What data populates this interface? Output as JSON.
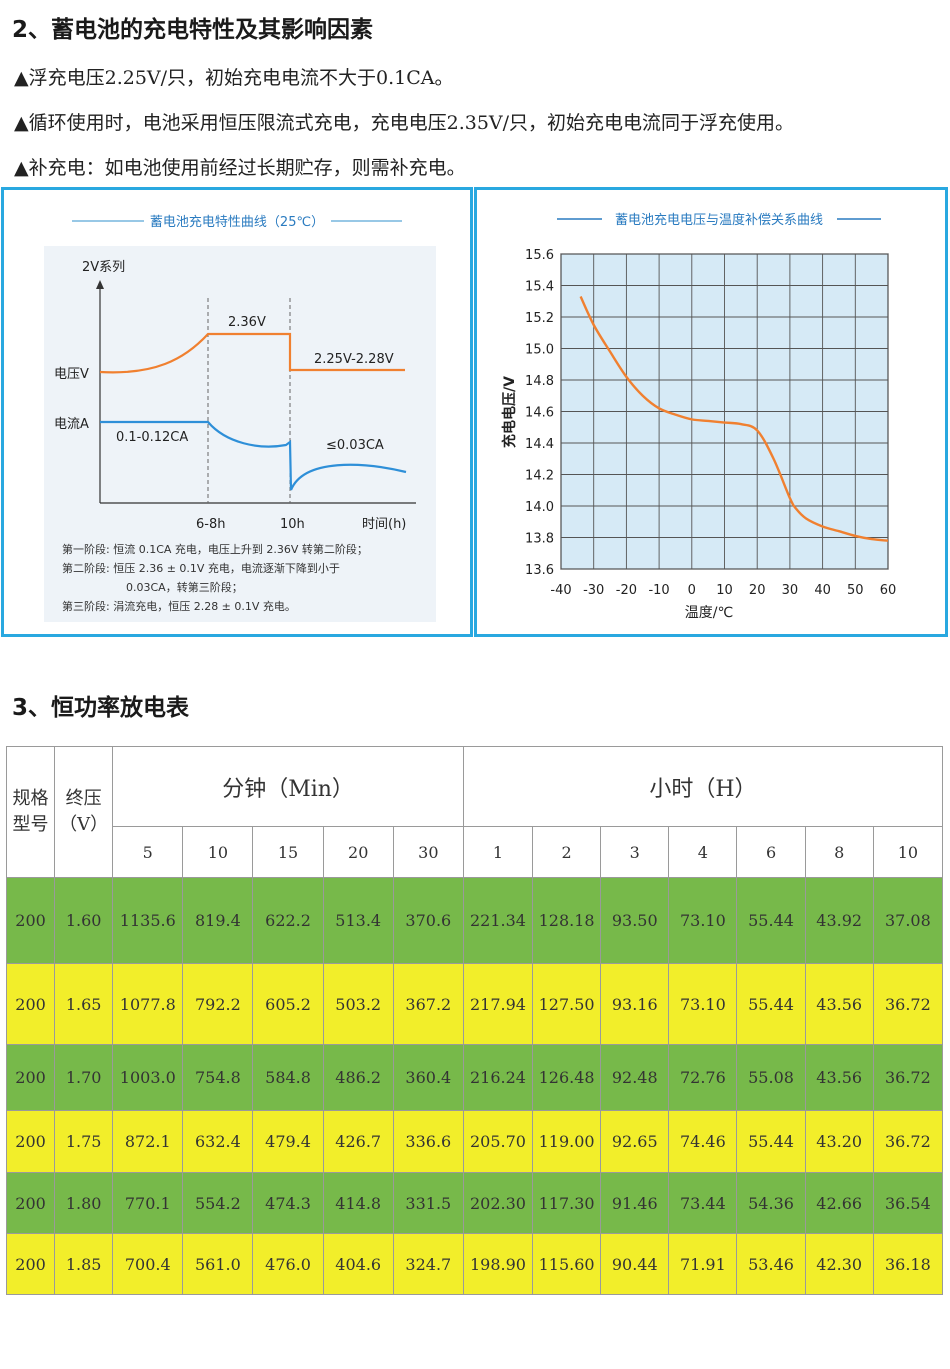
{
  "section2": {
    "title": "2、蓄电池的充电特性及其影响因素",
    "bullets": [
      "▲浮充电压2.25V/只，初始充电电流不大于0.1CA。",
      "▲循环使用时，电池采用恒压限流式充电，充电电压2.35V/只，初始充电电流同于浮充使用。",
      "▲补充电：如电池使用前经过长期贮存，则需补充电。"
    ]
  },
  "left_panel": {
    "title": "蓄电池充电特性曲线（25℃）",
    "series_label": "2V系列",
    "voltage_label": "电压V",
    "current_label": "电流A",
    "v_high": "2.36V",
    "v_float": "2.25V-2.28V",
    "i_initial": "0.1-0.12CA",
    "i_final": "≤0.03CA",
    "t1": "6-8h",
    "t2": "10h",
    "t_axis": "时间(h)",
    "notes": [
      "第一阶段:  恒流 0.1CA 充电，电压上升到 2.36V 转第二阶段；",
      "第二阶段:  恒压 2.36 ± 0.1V 充电，电流逐渐下降到小于",
      "0.03CA，转第三阶段；",
      "第三阶段:  涓流充电，恒压 2.28 ± 0.1V 充电。"
    ],
    "colors": {
      "voltage": "#f08030",
      "current": "#2e8fd8",
      "bg": "#eef3f8"
    }
  },
  "chart_data": {
    "type": "line",
    "title": "蓄电池充电电压与温度补偿关系曲线",
    "xlabel": "温度/℃",
    "ylabel": "充电电压/V",
    "xlim": [
      -40,
      60
    ],
    "ylim": [
      13.6,
      15.6
    ],
    "x_ticks": [
      "-40",
      "-30",
      "-20",
      "-10",
      "0",
      "10",
      "20",
      "30",
      "40",
      "50",
      "60"
    ],
    "y_ticks": [
      "15.6",
      "15.4",
      "15.2",
      "15.0",
      "14.8",
      "14.6",
      "14.4",
      "14.2",
      "14.0",
      "13.8",
      "13.6"
    ],
    "grid": true,
    "series": [
      {
        "color": "#f08030",
        "x": [
          -34,
          -30,
          -25,
          -20,
          -15,
          -10,
          -5,
          0,
          5,
          10,
          15,
          20,
          25,
          30,
          32,
          35,
          40,
          45,
          50,
          55,
          60
        ],
        "y": [
          15.33,
          15.15,
          14.98,
          14.82,
          14.7,
          14.62,
          14.58,
          14.55,
          14.54,
          14.53,
          14.52,
          14.48,
          14.3,
          14.05,
          13.98,
          13.92,
          13.87,
          13.84,
          13.81,
          13.79,
          13.78
        ]
      }
    ]
  },
  "section3": {
    "title": "3、恒功率放电表"
  },
  "table": {
    "spec_header": [
      "规格",
      "型号"
    ],
    "volt_header": [
      "终压",
      "（V）"
    ],
    "min_group": "分钟（Min）",
    "hour_group": "小时（H）",
    "min_cols": [
      "5",
      "10",
      "15",
      "20",
      "30"
    ],
    "hour_cols": [
      "1",
      "2",
      "3",
      "4",
      "6",
      "8",
      "10"
    ],
    "rows": [
      [
        "200",
        "1.60",
        "1135.6",
        "819.4",
        "622.2",
        "513.4",
        "370.6",
        "221.34",
        "128.18",
        "93.50",
        "73.10",
        "55.44",
        "43.92",
        "37.08"
      ],
      [
        "200",
        "1.65",
        "1077.8",
        "792.2",
        "605.2",
        "503.2",
        "367.2",
        "217.94",
        "127.50",
        "93.16",
        "73.10",
        "55.44",
        "43.56",
        "36.72"
      ],
      [
        "200",
        "1.70",
        "1003.0",
        "754.8",
        "584.8",
        "486.2",
        "360.4",
        "216.24",
        "126.48",
        "92.48",
        "72.76",
        "55.08",
        "43.56",
        "36.72"
      ],
      [
        "200",
        "1.75",
        "872.1",
        "632.4",
        "479.4",
        "426.7",
        "336.6",
        "205.70",
        "119.00",
        "92.65",
        "74.46",
        "55.44",
        "43.20",
        "36.72"
      ],
      [
        "200",
        "1.80",
        "770.1",
        "554.2",
        "474.3",
        "414.8",
        "331.5",
        "202.30",
        "117.30",
        "91.46",
        "73.44",
        "54.36",
        "42.66",
        "36.54"
      ],
      [
        "200",
        "1.85",
        "700.4",
        "561.0",
        "476.0",
        "404.6",
        "324.7",
        "198.90",
        "115.60",
        "90.44",
        "71.91",
        "53.46",
        "42.30",
        "36.18"
      ]
    ],
    "row_colors": [
      "#77b94a",
      "#f2ee2a",
      "#77b94a",
      "#f2ee2a",
      "#77b94a",
      "#f2ee2a"
    ]
  }
}
